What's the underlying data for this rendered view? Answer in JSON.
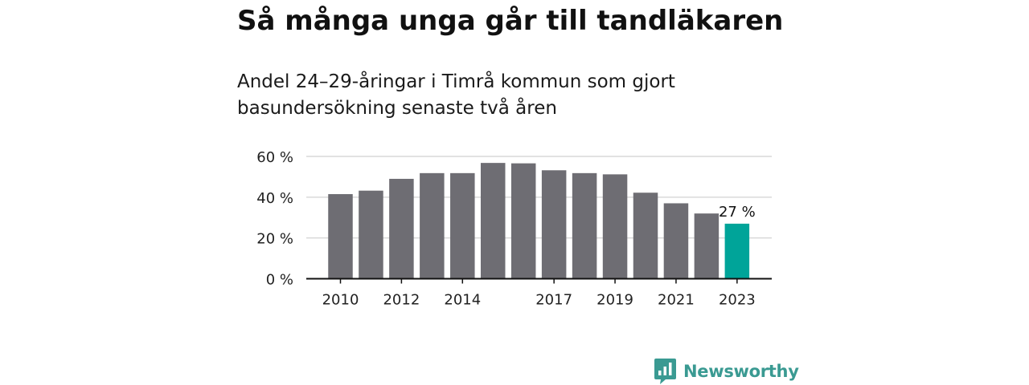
{
  "header": {
    "title": "Så många unga går till tandläkaren",
    "subtitle": "Andel 24–29-åringar i Timrå kommun som gjort basundersökning senaste två åren"
  },
  "chart_data": {
    "type": "bar",
    "categories": [
      "2010",
      "2011",
      "2012",
      "2013",
      "2014",
      "2015",
      "2016",
      "2017",
      "2018",
      "2019",
      "2020",
      "2021",
      "2022",
      "2023"
    ],
    "values": [
      41.5,
      43.2,
      49.0,
      51.8,
      51.8,
      56.8,
      56.6,
      53.2,
      51.8,
      51.2,
      42.2,
      37.0,
      32.0,
      27.0
    ],
    "xtick_labels": [
      "2010",
      "",
      "2012",
      "",
      "2014",
      "",
      "",
      "2017",
      "",
      "2019",
      "",
      "2021",
      "",
      "2023"
    ],
    "yticks": [
      0,
      20,
      40,
      60
    ],
    "ytick_labels": [
      "0 %",
      "20 %",
      "40 %",
      "60 %"
    ],
    "ylim": [
      0,
      60
    ],
    "grid": true,
    "highlight_index": 13,
    "annotation": "27 %",
    "colors": {
      "bar": "#6e6d73",
      "highlight": "#00a499",
      "grid": "#d9d9d9",
      "axis": "#111111"
    }
  },
  "brand": {
    "name": "Newsworthy",
    "icon": "newsworthy-logo-icon",
    "color": "#3a9a92"
  }
}
